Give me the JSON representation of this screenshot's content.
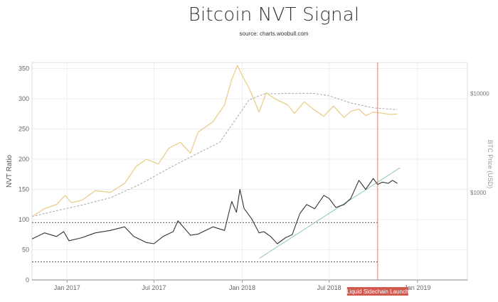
{
  "chart_data": {
    "type": "line",
    "title": "Bitcoin NVT Signal",
    "subtitle": "source: charts.woobull.com",
    "ylabel": "NVT Ratio",
    "ylabel_right": "BTC Price (USD)",
    "ylim": [
      0,
      360
    ],
    "xlim": [
      "2016-10-20",
      "2019-04-15"
    ],
    "yticks": [
      0,
      50,
      100,
      150,
      200,
      250,
      300,
      350
    ],
    "xticks": [
      {
        "date": "2017-01-01",
        "label": "Jan 2017"
      },
      {
        "date": "2017-07-01",
        "label": "Jul 2017"
      },
      {
        "date": "2018-01-01",
        "label": "Jan 2018"
      },
      {
        "date": "2018-07-01",
        "label": "Jul 2018"
      },
      {
        "date": "2019-01-01",
        "label": "Jan 2019"
      }
    ],
    "right_axis": {
      "scale": "log",
      "ticks": [
        {
          "label": "$1000",
          "value": 1000,
          "nvt_equiv": 145
        },
        {
          "label": "$10000",
          "value": 10000,
          "nvt_equiv": 309
        }
      ]
    },
    "colors": {
      "nvt": "#333333",
      "price": "#e8cf8a",
      "price_ma": "#aaaaaa",
      "trendline": "#8fc9b0",
      "reference": "#555555",
      "event": "#d05a50"
    },
    "series": [
      {
        "key": "nvt",
        "x": [
          "2016-10-20",
          "2016-11-15",
          "2016-12-10",
          "2016-12-25",
          "2017-01-05",
          "2017-02-01",
          "2017-03-01",
          "2017-04-01",
          "2017-05-01",
          "2017-05-20",
          "2017-06-15",
          "2017-07-01",
          "2017-07-20",
          "2017-08-10",
          "2017-08-20",
          "2017-09-15",
          "2017-10-01",
          "2017-11-01",
          "2017-11-25",
          "2017-12-10",
          "2017-12-20",
          "2017-12-27",
          "2018-01-05",
          "2018-01-20",
          "2018-02-05",
          "2018-02-15",
          "2018-03-01",
          "2018-03-15",
          "2018-04-01",
          "2018-04-15",
          "2018-05-01",
          "2018-05-15",
          "2018-06-01",
          "2018-06-20",
          "2018-07-01",
          "2018-07-15",
          "2018-08-01",
          "2018-08-15",
          "2018-09-01",
          "2018-09-15",
          "2018-10-01",
          "2018-10-10",
          "2018-10-20",
          "2018-11-01",
          "2018-11-10",
          "2018-11-20"
        ],
        "y": [
          68,
          78,
          72,
          80,
          65,
          70,
          78,
          82,
          88,
          72,
          62,
          60,
          72,
          80,
          98,
          74,
          76,
          88,
          82,
          130,
          112,
          150,
          118,
          102,
          78,
          80,
          72,
          60,
          70,
          75,
          110,
          125,
          118,
          140,
          135,
          120,
          125,
          135,
          165,
          150,
          168,
          158,
          162,
          160,
          165,
          160
        ]
      },
      {
        "key": "price",
        "x": [
          "2016-10-20",
          "2016-11-15",
          "2016-12-10",
          "2016-12-28",
          "2017-01-10",
          "2017-02-01",
          "2017-03-01",
          "2017-04-01",
          "2017-05-01",
          "2017-05-25",
          "2017-06-15",
          "2017-07-10",
          "2017-08-01",
          "2017-08-25",
          "2017-09-15",
          "2017-10-01",
          "2017-11-01",
          "2017-11-25",
          "2017-12-10",
          "2017-12-22",
          "2018-01-01",
          "2018-01-15",
          "2018-02-05",
          "2018-02-20",
          "2018-03-10",
          "2018-04-05",
          "2018-04-20",
          "2018-05-10",
          "2018-06-01",
          "2018-06-20",
          "2018-07-10",
          "2018-08-01",
          "2018-08-15",
          "2018-09-01",
          "2018-09-15",
          "2018-10-01",
          "2018-10-20",
          "2018-11-05",
          "2018-11-20"
        ],
        "y": [
          105,
          118,
          125,
          140,
          128,
          132,
          148,
          145,
          160,
          188,
          200,
          192,
          218,
          228,
          210,
          245,
          262,
          290,
          332,
          355,
          338,
          318,
          278,
          310,
          300,
          290,
          276,
          295,
          281,
          271,
          288,
          269,
          279,
          283,
          272,
          278,
          276,
          274,
          275
        ]
      },
      {
        "key": "price_ma",
        "x": [
          "2016-10-20",
          "2016-12-01",
          "2017-02-01",
          "2017-04-01",
          "2017-06-01",
          "2017-08-01",
          "2017-10-01",
          "2017-11-15",
          "2017-12-15",
          "2018-01-15",
          "2018-02-15",
          "2018-04-01",
          "2018-06-01",
          "2018-07-01",
          "2018-08-15",
          "2018-10-01",
          "2018-11-20"
        ],
        "y": [
          105,
          113,
          124,
          136,
          158,
          185,
          210,
          228,
          262,
          298,
          308,
          309,
          309,
          305,
          293,
          285,
          282
        ]
      },
      {
        "key": "trendline",
        "x": [
          "2018-02-06",
          "2018-11-26"
        ],
        "y": [
          36,
          186
        ]
      },
      {
        "key": "reference_upper",
        "x": [
          "2016-10-20",
          "2018-10-10"
        ],
        "y": [
          95,
          95
        ]
      },
      {
        "key": "reference_lower",
        "x": [
          "2016-10-20",
          "2018-10-10"
        ],
        "y": [
          30,
          30
        ]
      }
    ],
    "annotations": [
      {
        "type": "vline",
        "x": "2018-10-10",
        "label": "Liquid Sidechain Launch"
      }
    ],
    "grid": true
  }
}
